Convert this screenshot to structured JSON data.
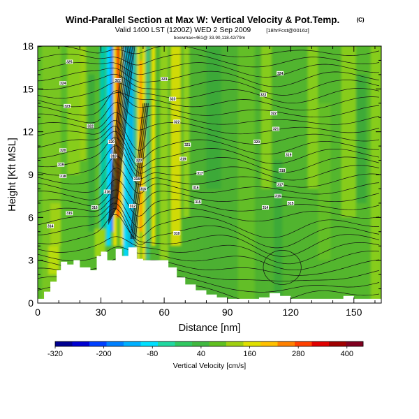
{
  "header": {
    "title": "Wind-Parallel Section at Max W: Vertical Velocity & Pot.Temp.",
    "title_suffix": "(C)",
    "subtitle_main": "Valid 1400 LST (1200Z) WED 2 Sep 2009",
    "subtitle_tag": "[18hrFcst@0016z]",
    "subtitle_small": "boxwmax=461@ 33.90,118.42/79m"
  },
  "chart_data": {
    "type": "heatmap",
    "xlabel": "Distance [nm]",
    "ylabel": "Height [Kft MSL]",
    "xlim": [
      0,
      163
    ],
    "ylim": [
      0,
      18
    ],
    "x_ticks": [
      0,
      30,
      60,
      90,
      120,
      150
    ],
    "y_ticks": [
      0,
      3,
      6,
      9,
      12,
      15,
      18
    ],
    "colorbar": {
      "label": "Vertical Velocity [cm/s]",
      "range": [
        -320,
        440
      ],
      "tick_labels": [
        -320,
        -200,
        -80,
        40,
        160,
        280,
        400
      ],
      "colors": [
        "#000090",
        "#0000d0",
        "#0040ff",
        "#0080ff",
        "#00b0ff",
        "#00e0ff",
        "#20d8a0",
        "#30c860",
        "#40b840",
        "#60c020",
        "#a0d010",
        "#e0e000",
        "#ffc000",
        "#ff8000",
        "#ff4000",
        "#e00000",
        "#a00000",
        "#800020"
      ]
    },
    "terrain": {
      "x": [
        0,
        3,
        6,
        9,
        11,
        14,
        17,
        20,
        25,
        28,
        30,
        33,
        37,
        40,
        43,
        47,
        50,
        52,
        55,
        58,
        62,
        66,
        70,
        75,
        80,
        85,
        90,
        95,
        100,
        105,
        110,
        115,
        120,
        125,
        130,
        135,
        140,
        145,
        150,
        155,
        160,
        163
      ],
      "height": [
        0.3,
        0.8,
        1.5,
        2.3,
        2.9,
        2.7,
        3.0,
        2.5,
        2.3,
        3.3,
        3.6,
        3.0,
        3.8,
        3.3,
        3.9,
        3.1,
        3.0,
        3.0,
        3.0,
        3.0,
        2.5,
        1.8,
        1.3,
        0.9,
        0.6,
        0.4,
        0.3,
        0.3,
        0.3,
        0.4,
        0.7,
        0.5,
        0.3,
        0.3,
        0.3,
        0.3,
        0.3,
        0.5,
        0.3,
        0.3,
        0.3,
        0.3
      ]
    },
    "contour_labels": [
      {
        "x": 15,
        "y": 16.9,
        "text": "325"
      },
      {
        "x": 12,
        "y": 15.4,
        "text": "324"
      },
      {
        "x": 14,
        "y": 13.8,
        "text": "323"
      },
      {
        "x": 25,
        "y": 12.4,
        "text": "322"
      },
      {
        "x": 12,
        "y": 10.7,
        "text": "320"
      },
      {
        "x": 11,
        "y": 9.7,
        "text": "319"
      },
      {
        "x": 12,
        "y": 8.9,
        "text": "318"
      },
      {
        "x": 27,
        "y": 6.7,
        "text": "316"
      },
      {
        "x": 15,
        "y": 6.3,
        "text": "315"
      },
      {
        "x": 6,
        "y": 5.4,
        "text": "314"
      },
      {
        "x": 38,
        "y": 15.6,
        "text": "322"
      },
      {
        "x": 35,
        "y": 11.3,
        "text": "320"
      },
      {
        "x": 36,
        "y": 10.3,
        "text": "318"
      },
      {
        "x": 33,
        "y": 7.8,
        "text": "316"
      },
      {
        "x": 48,
        "y": 10.0,
        "text": "320"
      },
      {
        "x": 47,
        "y": 8.7,
        "text": "318"
      },
      {
        "x": 50,
        "y": 8.0,
        "text": "316"
      },
      {
        "x": 45,
        "y": 6.8,
        "text": "312"
      },
      {
        "x": 60,
        "y": 15.7,
        "text": "323"
      },
      {
        "x": 64,
        "y": 14.3,
        "text": "323"
      },
      {
        "x": 66,
        "y": 12.7,
        "text": "322"
      },
      {
        "x": 71,
        "y": 11.1,
        "text": "321"
      },
      {
        "x": 69,
        "y": 10.1,
        "text": "319"
      },
      {
        "x": 77,
        "y": 9.1,
        "text": "317"
      },
      {
        "x": 75,
        "y": 8.1,
        "text": "316"
      },
      {
        "x": 76,
        "y": 7.1,
        "text": "315"
      },
      {
        "x": 66,
        "y": 4.9,
        "text": "310"
      },
      {
        "x": 115,
        "y": 16.1,
        "text": "324"
      },
      {
        "x": 107,
        "y": 14.6,
        "text": "323"
      },
      {
        "x": 112,
        "y": 13.3,
        "text": "322"
      },
      {
        "x": 113,
        "y": 12.2,
        "text": "321"
      },
      {
        "x": 104,
        "y": 11.3,
        "text": "320"
      },
      {
        "x": 119,
        "y": 10.4,
        "text": "319"
      },
      {
        "x": 116,
        "y": 9.3,
        "text": "318"
      },
      {
        "x": 115,
        "y": 8.3,
        "text": "317"
      },
      {
        "x": 114,
        "y": 7.5,
        "text": "316"
      },
      {
        "x": 120,
        "y": 7.0,
        "text": "315"
      },
      {
        "x": 108,
        "y": 6.7,
        "text": "314"
      }
    ]
  }
}
